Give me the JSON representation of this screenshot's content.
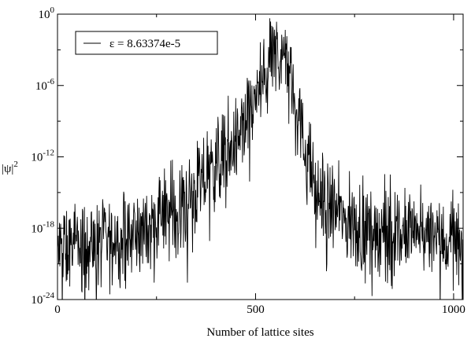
{
  "chart_data": {
    "type": "line",
    "title": "",
    "xlabel": "Number of lattice sites",
    "ylabel": "|ψ|",
    "ylabel_sup": "2",
    "xlim": [
      0,
      1024
    ],
    "ylim_log10": [
      -24,
      0
    ],
    "y_scale": "log",
    "grid": false,
    "legend_position": "top-left",
    "x_ticks": [
      {
        "value": 0,
        "label": "0"
      },
      {
        "value": 500,
        "label": "500"
      },
      {
        "value": 1000,
        "label": "1000"
      }
    ],
    "y_ticks": [
      {
        "exp": 0,
        "label": "10",
        "sup": "0"
      },
      {
        "exp": -6,
        "label": "10",
        "sup": "-6"
      },
      {
        "exp": -12,
        "label": "10",
        "sup": "-12"
      },
      {
        "exp": -18,
        "label": "10",
        "sup": "-18"
      },
      {
        "exp": -24,
        "label": "10",
        "sup": "-24"
      }
    ],
    "series": [
      {
        "name": "ε = 8.63374e-5",
        "color": "#000000",
        "envelope_log10": {
          "x": [
            0,
            50,
            100,
            150,
            200,
            250,
            300,
            350,
            400,
            450,
            500,
            520,
            540,
            550,
            560,
            580,
            600,
            620,
            640,
            650,
            700,
            750,
            800,
            850,
            900,
            950,
            1000,
            1024
          ],
          "y": [
            -20,
            -19.5,
            -19.5,
            -19,
            -18.5,
            -17.5,
            -16.5,
            -15,
            -12.5,
            -11,
            -7,
            -6,
            -4,
            -3.5,
            -3.5,
            -4,
            -6.5,
            -11,
            -13,
            -15,
            -16.5,
            -18,
            -18,
            -18.5,
            -18.5,
            -19,
            -19,
            -19
          ]
        },
        "noise_amplitude_log10": 2.6
      }
    ]
  }
}
